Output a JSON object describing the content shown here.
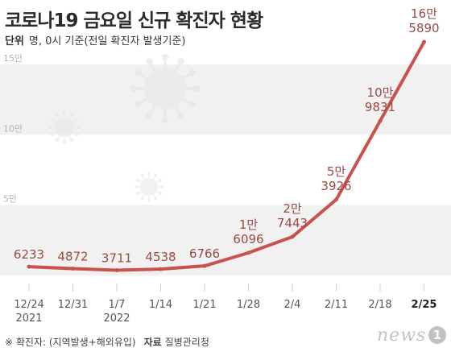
{
  "header": {
    "title": "코로나19 금요일 신규 확진자 현황",
    "unit_label": "단위",
    "unit_text": "명, 0시 기준(전일 확진자 발생기준)"
  },
  "footer": {
    "note": "※ 확진자: (지역발생+해외유입)",
    "source_label": "자료",
    "source": "질병관리청"
  },
  "logo": {
    "text": "news",
    "mark": "1"
  },
  "chart_data": {
    "type": "line",
    "categories": [
      "12/24\n2021",
      "12/31",
      "1/7\n2022",
      "1/14",
      "1/21",
      "1/28",
      "2/4",
      "2/11",
      "2/18",
      "2/25"
    ],
    "values": [
      6233,
      4872,
      3711,
      4538,
      6766,
      16096,
      27443,
      53926,
      109831,
      165890
    ],
    "data_labels": [
      "6233",
      "4872",
      "3711",
      "4538",
      "6766",
      "1만\n6096",
      "2만\n7443",
      "5만\n3926",
      "10만\n9831",
      "16만\n5890"
    ],
    "y_tick_values": [
      50000,
      100000,
      150000
    ],
    "y_tick_labels": [
      "5만",
      "10만",
      "15만"
    ],
    "ylim": [
      0,
      170000
    ],
    "highlight_index": 9,
    "grid": "alternating bands",
    "colors": {
      "line": "#c9524b",
      "label": "#9a4a45",
      "band": "#f1f1f1",
      "tick": "#d0d0d0",
      "axis_text": "#555555"
    }
  }
}
